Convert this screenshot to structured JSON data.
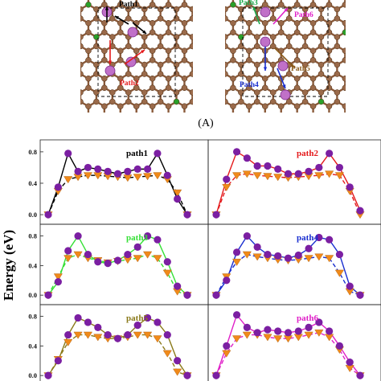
{
  "figure": {
    "caption": "(A)",
    "ylabel": "Energy (eV)",
    "structure_path_labels": [
      {
        "text": "Path1",
        "color": "#000000"
      },
      {
        "text": "Path2",
        "color": "#e41a1c"
      },
      {
        "text": "Path3",
        "color": "#1aa84a"
      },
      {
        "text": "Path6",
        "color": "#e020c8"
      },
      {
        "text": "Path5",
        "color": "#8a5a1a"
      },
      {
        "text": "Path4",
        "color": "#1a2fd0"
      }
    ]
  },
  "colors": {
    "carbon": "#9a6a4a",
    "dopant": "#2aa02a",
    "adatom": "#c070c8",
    "circle": "#7b1fa2",
    "triangle": "#f08a1a"
  },
  "chart_data": [
    {
      "type": "line",
      "title": "path1",
      "color": "#000000",
      "ylim": [
        -0.02,
        0.85
      ],
      "yticks": [
        0.0,
        0.4,
        0.8
      ],
      "x_circle": [
        0,
        1,
        2,
        3,
        4,
        5,
        6,
        7,
        8,
        9,
        10,
        11,
        12,
        13,
        14
      ],
      "y_circle": [
        0.0,
        0.35,
        0.78,
        0.55,
        0.6,
        0.58,
        0.55,
        0.52,
        0.55,
        0.58,
        0.58,
        0.78,
        0.5,
        0.2,
        0.0
      ],
      "x_triangle": [
        0,
        1,
        2,
        3,
        4,
        5,
        6,
        7,
        8,
        9,
        10,
        11,
        12,
        13,
        14
      ],
      "y_triangle": [
        0.0,
        0.3,
        0.45,
        0.48,
        0.5,
        0.5,
        0.49,
        0.48,
        0.47,
        0.48,
        0.49,
        0.5,
        0.45,
        0.28,
        0.0
      ]
    },
    {
      "type": "line",
      "title": "path2",
      "color": "#e41a1c",
      "ylim": [
        -0.02,
        0.85
      ],
      "yticks": [
        0.0,
        0.4,
        0.8
      ],
      "x_circle": [
        0,
        1,
        2,
        3,
        4,
        5,
        6,
        7,
        8,
        9,
        10,
        11,
        12,
        13,
        14
      ],
      "y_circle": [
        0.0,
        0.45,
        0.8,
        0.72,
        0.62,
        0.62,
        0.58,
        0.52,
        0.52,
        0.55,
        0.6,
        0.78,
        0.6,
        0.35,
        0.05
      ],
      "x_triangle": [
        0,
        1,
        2,
        3,
        4,
        5,
        6,
        7,
        8,
        9,
        10,
        11,
        12,
        13,
        14
      ],
      "y_triangle": [
        0.0,
        0.35,
        0.5,
        0.52,
        0.5,
        0.49,
        0.48,
        0.47,
        0.48,
        0.49,
        0.5,
        0.52,
        0.5,
        0.3,
        0.0
      ]
    },
    {
      "type": "line",
      "title": "path3",
      "color": "#35e035",
      "ylim": [
        -0.02,
        0.85
      ],
      "yticks": [
        0.0,
        0.4,
        0.8
      ],
      "x_circle": [
        0,
        1,
        2,
        3,
        4,
        5,
        6,
        7,
        8,
        9,
        10,
        11,
        12,
        13,
        14
      ],
      "y_circle": [
        0.0,
        0.18,
        0.6,
        0.8,
        0.55,
        0.45,
        0.43,
        0.47,
        0.55,
        0.65,
        0.8,
        0.75,
        0.45,
        0.12,
        0.0
      ],
      "x_triangle": [
        0,
        1,
        2,
        3,
        4,
        5,
        6,
        7,
        8,
        9,
        10,
        11,
        12,
        13,
        14
      ],
      "y_triangle": [
        0.0,
        0.25,
        0.5,
        0.55,
        0.5,
        0.47,
        0.44,
        0.46,
        0.48,
        0.5,
        0.55,
        0.5,
        0.3,
        0.05,
        0.0
      ]
    },
    {
      "type": "line",
      "title": "path4",
      "color": "#1a2fd0",
      "ylim": [
        -0.02,
        0.85
      ],
      "yticks": [
        0.0,
        0.4,
        0.8
      ],
      "x_circle": [
        0,
        1,
        2,
        3,
        4,
        5,
        6,
        7,
        8,
        9,
        10,
        11,
        12,
        13,
        14
      ],
      "y_circle": [
        0.0,
        0.2,
        0.58,
        0.8,
        0.65,
        0.55,
        0.53,
        0.5,
        0.54,
        0.63,
        0.78,
        0.75,
        0.55,
        0.12,
        0.0
      ],
      "x_triangle": [
        0,
        1,
        2,
        3,
        4,
        5,
        6,
        7,
        8,
        9,
        10,
        11,
        12,
        13,
        14
      ],
      "y_triangle": [
        0.0,
        0.25,
        0.45,
        0.55,
        0.52,
        0.5,
        0.48,
        0.47,
        0.48,
        0.5,
        0.52,
        0.5,
        0.3,
        0.05,
        0.0
      ]
    },
    {
      "type": "line",
      "title": "path5",
      "color": "#8a7a1a",
      "ylim": [
        -0.02,
        0.85
      ],
      "yticks": [
        0.0,
        0.4,
        0.8
      ],
      "x_circle": [
        0,
        1,
        2,
        3,
        4,
        5,
        6,
        7,
        8,
        9,
        10,
        11,
        12,
        13,
        14
      ],
      "y_circle": [
        0.0,
        0.2,
        0.55,
        0.78,
        0.72,
        0.65,
        0.55,
        0.5,
        0.55,
        0.68,
        0.78,
        0.72,
        0.55,
        0.2,
        0.0
      ],
      "x_triangle": [
        0,
        1,
        2,
        3,
        4,
        5,
        6,
        7,
        8,
        9,
        10,
        11,
        12,
        13,
        14
      ],
      "y_triangle": [
        0.0,
        0.22,
        0.45,
        0.55,
        0.55,
        0.52,
        0.5,
        0.5,
        0.52,
        0.55,
        0.55,
        0.5,
        0.3,
        0.05,
        0.0
      ]
    },
    {
      "type": "line",
      "title": "path6",
      "color": "#e020c8",
      "ylim": [
        -0.02,
        0.85
      ],
      "yticks": [
        0.0,
        0.4,
        0.8
      ],
      "x_circle": [
        0,
        1,
        2,
        3,
        4,
        5,
        6,
        7,
        8,
        9,
        10,
        11,
        12,
        13,
        14
      ],
      "y_circle": [
        0.0,
        0.4,
        0.82,
        0.65,
        0.58,
        0.62,
        0.6,
        0.58,
        0.6,
        0.65,
        0.72,
        0.6,
        0.4,
        0.18,
        0.0
      ],
      "x_triangle": [
        0,
        1,
        2,
        3,
        4,
        5,
        6,
        7,
        8,
        9,
        10,
        11,
        12,
        13,
        14
      ],
      "y_triangle": [
        0.0,
        0.3,
        0.5,
        0.55,
        0.55,
        0.52,
        0.5,
        0.5,
        0.52,
        0.55,
        0.58,
        0.52,
        0.35,
        0.1,
        0.0
      ]
    }
  ]
}
